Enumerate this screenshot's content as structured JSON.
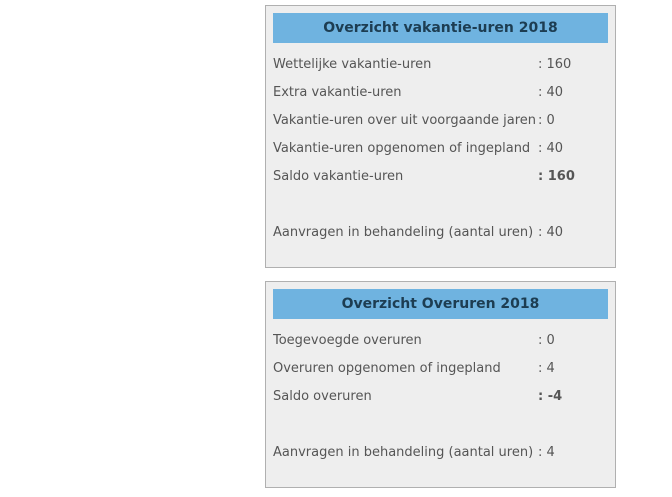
{
  "colors": {
    "header_bg": "#6fb3e0",
    "header_text": "#1d3d52",
    "panel_bg": "#eeeeee",
    "panel_border": "#b0b0b0",
    "body_text": "#555555"
  },
  "panels": [
    {
      "title": "Overzicht vakantie-uren 2018",
      "rows": [
        {
          "label": "Wettelijke vakantie-uren",
          "value": ": 160",
          "bold": false
        },
        {
          "label": "Extra vakantie-uren",
          "value": ": 40",
          "bold": false
        },
        {
          "label": "Vakantie-uren over uit voorgaande jaren",
          "value": ": 0",
          "bold": false
        },
        {
          "label": "Vakantie-uren opgenomen of ingepland",
          "value": ": 40",
          "bold": false
        },
        {
          "label": "Saldo vakantie-uren",
          "value": ": 160",
          "bold": true
        },
        {
          "label": "Aanvragen in behandeling (aantal uren)",
          "value": ": 40",
          "bold": false
        }
      ]
    },
    {
      "title": "Overzicht Overuren 2018",
      "rows": [
        {
          "label": "Toegevoegde overuren",
          "value": ": 0",
          "bold": false
        },
        {
          "label": "Overuren opgenomen of ingepland",
          "value": ": 4",
          "bold": false
        },
        {
          "label": "Saldo overuren",
          "value": ": -4",
          "bold": true
        },
        {
          "label": "Aanvragen in behandeling (aantal uren)",
          "value": ": 4",
          "bold": false
        }
      ]
    }
  ]
}
